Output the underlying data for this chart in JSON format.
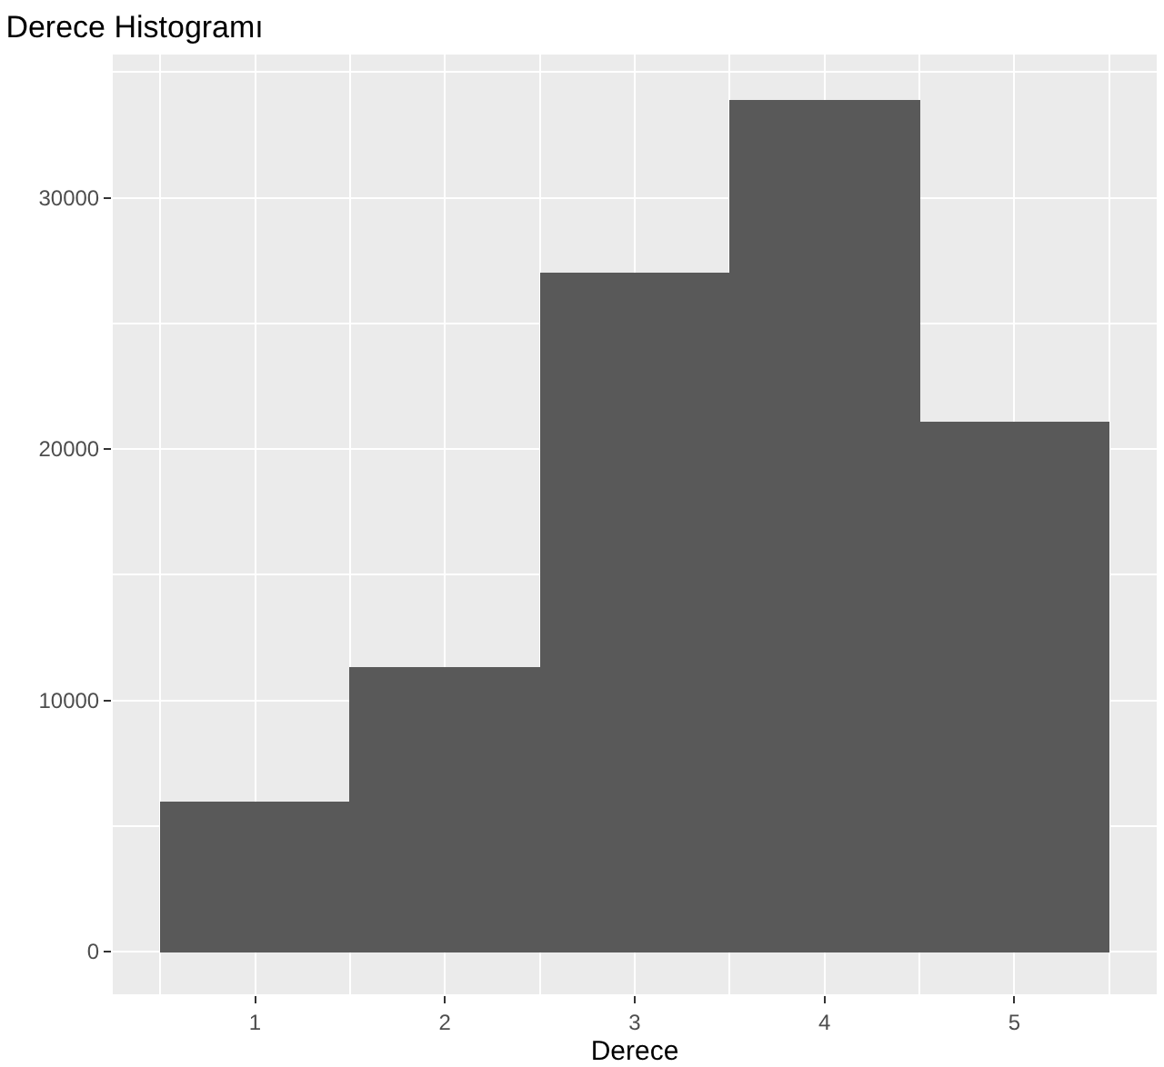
{
  "chart_data": {
    "type": "histogram",
    "title": "Derece Histogramı",
    "xlabel": "Derece",
    "bins": [
      0.5,
      1.5,
      2.5,
      3.5,
      4.5,
      5.5
    ],
    "values": [
      6000,
      11300,
      27000,
      33900,
      21100
    ],
    "color": "#595959",
    "xlim": [
      0.25,
      5.75
    ],
    "xticks": [
      1,
      2,
      3,
      4,
      5
    ],
    "ylim": [
      -1700,
      35700
    ],
    "yticks": [
      0,
      10000,
      20000,
      30000
    ],
    "grid": true
  }
}
